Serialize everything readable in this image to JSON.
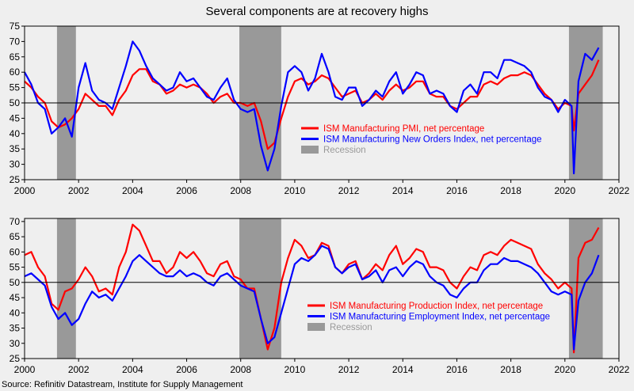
{
  "title": "Several components are at recovery highs",
  "source": "Source: Refinitiv Datastream, Institute for Supply Management",
  "colors": {
    "background": "#efefef",
    "red": "#ff0000",
    "blue": "#0000ff",
    "recession": "#999999",
    "refline": "#000000"
  },
  "chart_data": [
    {
      "type": "line",
      "x_ticks": [
        "2000",
        "2002",
        "2004",
        "2006",
        "2008",
        "2010",
        "2012",
        "2014",
        "2016",
        "2018",
        "2020",
        "2022"
      ],
      "y_ticks": [
        "25",
        "30",
        "35",
        "40",
        "45",
        "50",
        "55",
        "60",
        "65",
        "70",
        "75"
      ],
      "xlim": [
        2000,
        2022
      ],
      "ylim": [
        25,
        75
      ],
      "reference_line": 50,
      "recessions": [
        [
          2001.2,
          2001.9
        ],
        [
          2007.95,
          2009.5
        ],
        [
          2020.15,
          2021.4
        ]
      ],
      "legend_position": "center-right",
      "series": [
        {
          "name": "ISM Manufacturing PMI, net percentage",
          "color": "#ff0000",
          "x": [
            2000.0,
            2000.25,
            2000.5,
            2000.75,
            2001.0,
            2001.25,
            2001.5,
            2001.75,
            2002.0,
            2002.25,
            2002.5,
            2002.75,
            2003.0,
            2003.25,
            2003.5,
            2003.75,
            2004.0,
            2004.25,
            2004.5,
            2004.75,
            2005.0,
            2005.25,
            2005.5,
            2005.75,
            2006.0,
            2006.25,
            2006.5,
            2006.75,
            2007.0,
            2007.25,
            2007.5,
            2007.75,
            2008.0,
            2008.25,
            2008.5,
            2008.75,
            2009.0,
            2009.25,
            2009.5,
            2009.75,
            2010.0,
            2010.25,
            2010.5,
            2010.75,
            2011.0,
            2011.25,
            2011.5,
            2011.75,
            2012.0,
            2012.25,
            2012.5,
            2012.75,
            2013.0,
            2013.25,
            2013.5,
            2013.75,
            2014.0,
            2014.25,
            2014.5,
            2014.75,
            2015.0,
            2015.25,
            2015.5,
            2015.75,
            2016.0,
            2016.25,
            2016.5,
            2016.75,
            2017.0,
            2017.25,
            2017.5,
            2017.75,
            2018.0,
            2018.25,
            2018.5,
            2018.75,
            2019.0,
            2019.25,
            2019.5,
            2019.75,
            2020.0,
            2020.25,
            2020.33,
            2020.5,
            2020.75,
            2021.0,
            2021.25
          ],
          "values": [
            57,
            55,
            52,
            50,
            44,
            42,
            43,
            45,
            48,
            53,
            51,
            49,
            49,
            46,
            51,
            54,
            59,
            61,
            61,
            57,
            56,
            53,
            54,
            56,
            55,
            56,
            55,
            53,
            50,
            52,
            53,
            50,
            50,
            49,
            50,
            44,
            35,
            37,
            45,
            52,
            57,
            58,
            56,
            57,
            59,
            58,
            55,
            52,
            53,
            54,
            50,
            51,
            53,
            51,
            54,
            56,
            54,
            55,
            57,
            57,
            53,
            52,
            52,
            49,
            48,
            50,
            52,
            52,
            56,
            57,
            56,
            58,
            59,
            59,
            60,
            59,
            56,
            53,
            51,
            48,
            50,
            49,
            41,
            53,
            56,
            59,
            64
          ]
        },
        {
          "name": "ISM Manufacturing New Orders Index, net percentage",
          "color": "#0000ff",
          "x": [
            2000.0,
            2000.25,
            2000.5,
            2000.75,
            2001.0,
            2001.25,
            2001.5,
            2001.75,
            2002.0,
            2002.25,
            2002.5,
            2002.75,
            2003.0,
            2003.25,
            2003.5,
            2003.75,
            2004.0,
            2004.25,
            2004.5,
            2004.75,
            2005.0,
            2005.25,
            2005.5,
            2005.75,
            2006.0,
            2006.25,
            2006.5,
            2006.75,
            2007.0,
            2007.25,
            2007.5,
            2007.75,
            2008.0,
            2008.25,
            2008.5,
            2008.75,
            2009.0,
            2009.25,
            2009.5,
            2009.75,
            2010.0,
            2010.25,
            2010.5,
            2010.75,
            2011.0,
            2011.25,
            2011.5,
            2011.75,
            2012.0,
            2012.25,
            2012.5,
            2012.75,
            2013.0,
            2013.25,
            2013.5,
            2013.75,
            2014.0,
            2014.25,
            2014.5,
            2014.75,
            2015.0,
            2015.25,
            2015.5,
            2015.75,
            2016.0,
            2016.25,
            2016.5,
            2016.75,
            2017.0,
            2017.25,
            2017.5,
            2017.75,
            2018.0,
            2018.25,
            2018.5,
            2018.75,
            2019.0,
            2019.25,
            2019.5,
            2019.75,
            2020.0,
            2020.25,
            2020.33,
            2020.5,
            2020.75,
            2021.0,
            2021.25
          ],
          "values": [
            60,
            56,
            50,
            48,
            40,
            42,
            45,
            39,
            55,
            63,
            54,
            51,
            50,
            48,
            55,
            62,
            70,
            67,
            62,
            58,
            56,
            54,
            55,
            60,
            57,
            58,
            55,
            52,
            51,
            55,
            58,
            51,
            48,
            47,
            48,
            36,
            28,
            35,
            49,
            60,
            62,
            60,
            54,
            58,
            66,
            60,
            52,
            51,
            55,
            55,
            49,
            51,
            54,
            52,
            57,
            60,
            53,
            56,
            60,
            59,
            53,
            54,
            53,
            49,
            47,
            54,
            56,
            53,
            60,
            60,
            58,
            64,
            64,
            63,
            62,
            60,
            55,
            52,
            51,
            47,
            51,
            49,
            27,
            57,
            66,
            64,
            68
          ]
        }
      ]
    },
    {
      "type": "line",
      "x_ticks": [
        "2000",
        "2002",
        "2004",
        "2006",
        "2008",
        "2010",
        "2012",
        "2014",
        "2016",
        "2018",
        "2020",
        "2022"
      ],
      "y_ticks": [
        "25",
        "30",
        "35",
        "40",
        "45",
        "50",
        "55",
        "60",
        "65",
        "70"
      ],
      "xlim": [
        2000,
        2022
      ],
      "ylim": [
        25,
        71
      ],
      "reference_line": 50,
      "recessions": [
        [
          2001.2,
          2001.9
        ],
        [
          2007.95,
          2009.5
        ],
        [
          2020.15,
          2021.4
        ]
      ],
      "legend_position": "bottom-right",
      "series": [
        {
          "name": "ISM Manufacturing Production Index, net percentage",
          "color": "#ff0000",
          "x": [
            2000.0,
            2000.25,
            2000.5,
            2000.75,
            2001.0,
            2001.25,
            2001.5,
            2001.75,
            2002.0,
            2002.25,
            2002.5,
            2002.75,
            2003.0,
            2003.25,
            2003.5,
            2003.75,
            2004.0,
            2004.25,
            2004.5,
            2004.75,
            2005.0,
            2005.25,
            2005.5,
            2005.75,
            2006.0,
            2006.25,
            2006.5,
            2006.75,
            2007.0,
            2007.25,
            2007.5,
            2007.75,
            2008.0,
            2008.25,
            2008.5,
            2008.75,
            2009.0,
            2009.25,
            2009.5,
            2009.75,
            2010.0,
            2010.25,
            2010.5,
            2010.75,
            2011.0,
            2011.25,
            2011.5,
            2011.75,
            2012.0,
            2012.25,
            2012.5,
            2012.75,
            2013.0,
            2013.25,
            2013.5,
            2013.75,
            2014.0,
            2014.25,
            2014.5,
            2014.75,
            2015.0,
            2015.25,
            2015.5,
            2015.75,
            2016.0,
            2016.25,
            2016.5,
            2016.75,
            2017.0,
            2017.25,
            2017.5,
            2017.75,
            2018.0,
            2018.25,
            2018.5,
            2018.75,
            2019.0,
            2019.25,
            2019.5,
            2019.75,
            2020.0,
            2020.25,
            2020.33,
            2020.5,
            2020.75,
            2021.0,
            2021.25
          ],
          "values": [
            59,
            60,
            55,
            52,
            43,
            41,
            47,
            48,
            51,
            55,
            52,
            47,
            48,
            46,
            55,
            60,
            69,
            67,
            62,
            57,
            57,
            53,
            55,
            60,
            58,
            60,
            57,
            53,
            52,
            56,
            57,
            52,
            51,
            48,
            48,
            38,
            28,
            35,
            50,
            58,
            64,
            62,
            58,
            59,
            63,
            62,
            55,
            53,
            56,
            57,
            51,
            53,
            56,
            54,
            59,
            62,
            56,
            58,
            61,
            60,
            55,
            55,
            54,
            50,
            48,
            52,
            55,
            54,
            59,
            60,
            59,
            62,
            64,
            63,
            62,
            61,
            56,
            53,
            51,
            48,
            50,
            48,
            27,
            58,
            63,
            64,
            68
          ]
        },
        {
          "name": "ISM Manufacturing Employment Index, net percentage",
          "color": "#0000ff",
          "x": [
            2000.0,
            2000.25,
            2000.5,
            2000.75,
            2001.0,
            2001.25,
            2001.5,
            2001.75,
            2002.0,
            2002.25,
            2002.5,
            2002.75,
            2003.0,
            2003.25,
            2003.5,
            2003.75,
            2004.0,
            2004.25,
            2004.5,
            2004.75,
            2005.0,
            2005.25,
            2005.5,
            2005.75,
            2006.0,
            2006.25,
            2006.5,
            2006.75,
            2007.0,
            2007.25,
            2007.5,
            2007.75,
            2008.0,
            2008.25,
            2008.5,
            2008.75,
            2009.0,
            2009.25,
            2009.5,
            2009.75,
            2010.0,
            2010.25,
            2010.5,
            2010.75,
            2011.0,
            2011.25,
            2011.5,
            2011.75,
            2012.0,
            2012.25,
            2012.5,
            2012.75,
            2013.0,
            2013.25,
            2013.5,
            2013.75,
            2014.0,
            2014.25,
            2014.5,
            2014.75,
            2015.0,
            2015.25,
            2015.5,
            2015.75,
            2016.0,
            2016.25,
            2016.5,
            2016.75,
            2017.0,
            2017.25,
            2017.5,
            2017.75,
            2018.0,
            2018.25,
            2018.5,
            2018.75,
            2019.0,
            2019.25,
            2019.5,
            2019.75,
            2020.0,
            2020.25,
            2020.33,
            2020.5,
            2020.75,
            2021.0,
            2021.25
          ],
          "values": [
            52,
            53,
            51,
            49,
            42,
            38,
            40,
            36,
            38,
            43,
            47,
            45,
            46,
            44,
            48,
            52,
            57,
            59,
            57,
            55,
            53,
            52,
            52,
            54,
            52,
            53,
            52,
            50,
            49,
            52,
            53,
            51,
            49,
            48,
            47,
            38,
            30,
            32,
            40,
            48,
            56,
            58,
            57,
            59,
            62,
            61,
            55,
            53,
            55,
            56,
            51,
            52,
            54,
            50,
            54,
            55,
            52,
            55,
            57,
            56,
            52,
            50,
            49,
            46,
            45,
            48,
            50,
            50,
            54,
            56,
            56,
            58,
            57,
            57,
            56,
            55,
            53,
            50,
            47,
            46,
            47,
            46,
            28,
            44,
            50,
            53,
            59
          ]
        }
      ]
    }
  ],
  "legend_extra_label": "Recession"
}
